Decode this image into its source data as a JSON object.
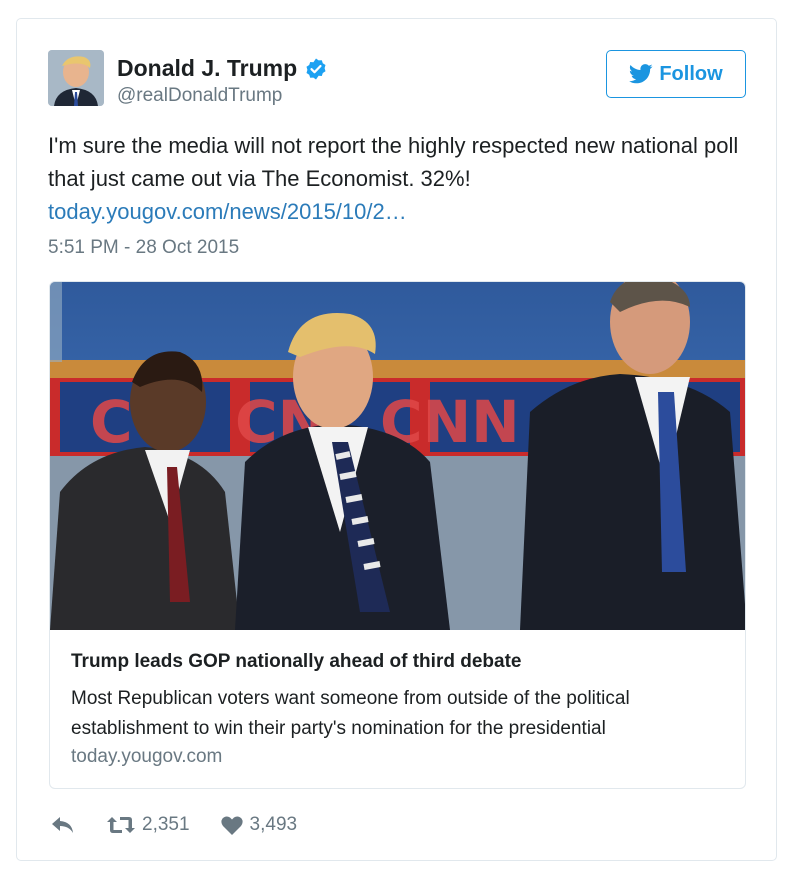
{
  "author": {
    "name": "Donald J. Trump",
    "handle": "@realDonaldTrump",
    "verified_icon": "verified-badge-icon",
    "avatar_icon": "profile-photo"
  },
  "follow": {
    "label": "Follow",
    "icon": "twitter-bird-icon"
  },
  "tweet": {
    "text": "I'm sure the media will not report the highly respected new national poll that just came out via The Economist. 32%!",
    "link": "today.yougov.com/news/2015/10/2…",
    "timestamp": "5:51 PM - 28 Oct 2015"
  },
  "card": {
    "image_icon": "debate-stage-photo",
    "title": "Trump leads GOP nationally ahead of third debate",
    "description": "Most Republican voters want someone from outside of the political establishment to win their party's nomination for the presidential",
    "domain": "today.yougov.com"
  },
  "actions": {
    "reply_icon": "reply-icon",
    "retweet_icon": "retweet-icon",
    "retweet_count": "2,351",
    "like_icon": "heart-icon",
    "like_count": "3,493"
  },
  "colors": {
    "link_blue": "#2b7bb9",
    "follow_blue": "#1b95e0",
    "muted_gray": "#697882",
    "text_dark": "#1c2022",
    "border": "#e1e8ed"
  }
}
